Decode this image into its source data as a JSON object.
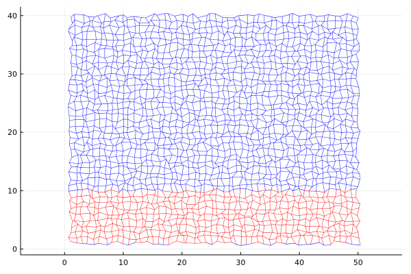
{
  "chart_data": {
    "type": "mesh",
    "title": "",
    "xlabel": "",
    "ylabel": "",
    "xlim": [
      -7.5,
      57.5
    ],
    "ylim": [
      -1,
      41.5
    ],
    "xticks": [
      0,
      10,
      20,
      30,
      40,
      50
    ],
    "yticks": [
      0,
      10,
      20,
      30,
      40
    ],
    "xtick_labels": [
      "0",
      "10",
      "20",
      "30",
      "40",
      "50"
    ],
    "ytick_labels": [
      "0",
      "10",
      "20",
      "30",
      "40"
    ],
    "grid": true,
    "legend": "none",
    "mesh": {
      "x_range": [
        1,
        50
      ],
      "y_range": [
        1,
        40
      ],
      "cells_x": 49,
      "cells_y": 39,
      "jitter": 0.4
    },
    "series": [
      {
        "region": "lower",
        "y_range": [
          1,
          10
        ],
        "color": "#ff0000"
      },
      {
        "region": "upper",
        "y_range": [
          10,
          40
        ],
        "color": "#0000ff"
      }
    ],
    "colors": {
      "grid": "#e6e6e6",
      "axis": "#000000",
      "background": "#ffffff"
    }
  }
}
